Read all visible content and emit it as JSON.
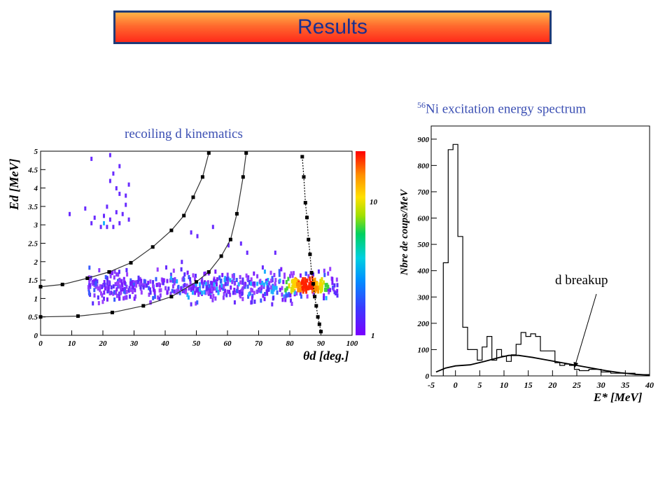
{
  "banner": {
    "title": "Results"
  },
  "chart_data": [
    {
      "type": "heatmap",
      "title": "recoiling d kinematics",
      "xlabel": "θd [deg.]",
      "ylabel": "Ed [MeV]",
      "xlim": [
        0,
        100
      ],
      "ylim": [
        0,
        5
      ],
      "x_ticks": [
        "0",
        "10",
        "20",
        "30",
        "40",
        "50",
        "60",
        "70",
        "80",
        "90",
        "100"
      ],
      "y_ticks": [
        "0",
        "0.5",
        "1",
        "1.5",
        "2",
        "2.5",
        "3",
        "3.5",
        "4",
        "4.5",
        "5"
      ],
      "colorbar": {
        "labels": [
          "1",
          "10"
        ]
      },
      "kinematic_curves": [
        {
          "style": "solid",
          "points": [
            [
              0,
              1.32
            ],
            [
              7,
              1.38
            ],
            [
              15,
              1.55
            ],
            [
              22,
              1.72
            ],
            [
              29,
              1.97
            ],
            [
              36,
              2.4
            ],
            [
              42,
              2.85
            ],
            [
              46,
              3.25
            ],
            [
              49,
              3.75
            ],
            [
              52,
              4.3
            ],
            [
              54,
              4.95
            ]
          ]
        },
        {
          "style": "solid",
          "points": [
            [
              0,
              0.5
            ],
            [
              12,
              0.52
            ],
            [
              23,
              0.62
            ],
            [
              33,
              0.8
            ],
            [
              42,
              1.05
            ],
            [
              50,
              1.45
            ],
            [
              54,
              1.72
            ],
            [
              58,
              2.15
            ],
            [
              61,
              2.6
            ],
            [
              63,
              3.3
            ],
            [
              65,
              4.3
            ],
            [
              66,
              4.95
            ]
          ]
        },
        {
          "style": "dotted",
          "points": [
            [
              84,
              4.85
            ],
            [
              84.5,
              4.3
            ],
            [
              85,
              3.6
            ],
            [
              85.5,
              3.2
            ],
            [
              86,
              2.6
            ],
            [
              86.5,
              2.2
            ],
            [
              87,
              1.7
            ],
            [
              87.5,
              1.4
            ],
            [
              88,
              1.05
            ],
            [
              88.5,
              0.8
            ],
            [
              89,
              0.5
            ],
            [
              89.5,
              0.3
            ],
            [
              90,
              0.1
            ]
          ]
        }
      ],
      "hotspot": {
        "x": 85,
        "y": 1.42
      },
      "band": {
        "x": [
          15,
          95
        ],
        "y": [
          1.05,
          1.75
        ]
      }
    },
    {
      "type": "line",
      "title": "56Ni excitation energy spectrum",
      "title_super": "56",
      "title_rest": "Ni excitation energy spectrum",
      "xlabel": "E* [MeV]",
      "ylabel": "Nbre de coups/MeV",
      "xlim": [
        -5,
        40
      ],
      "ylim": [
        0,
        950
      ],
      "x_ticks": [
        "-5",
        "0",
        "5",
        "10",
        "15",
        "20",
        "25",
        "30",
        "35",
        "40"
      ],
      "y_ticks": [
        "0",
        "100",
        "200",
        "300",
        "400",
        "500",
        "600",
        "700",
        "800",
        "900"
      ],
      "histogram": {
        "edges": [
          -2.5,
          -1.5,
          -0.5,
          0.5,
          1.5,
          2.5,
          3.5,
          4.5,
          5.5,
          6.5,
          7.5,
          8.5,
          9.5,
          10.5,
          11.5,
          12.5,
          13.5,
          14.5,
          15.5,
          16.5,
          17.5,
          18.5,
          19.5,
          20.5,
          21.5,
          22.5,
          23.5,
          24.5,
          25.5,
          27.5,
          30,
          32,
          35,
          37,
          40
        ],
        "counts": [
          430,
          860,
          880,
          530,
          185,
          100,
          100,
          60,
          110,
          150,
          60,
          100,
          75,
          55,
          80,
          120,
          165,
          150,
          160,
          150,
          95,
          95,
          95,
          50,
          40,
          45,
          40,
          25,
          20,
          25,
          15,
          10,
          10,
          5
        ]
      },
      "background": {
        "x": [
          -4,
          -2,
          0,
          3,
          6,
          9,
          11,
          13,
          16,
          19,
          22,
          25,
          28,
          31,
          34,
          37,
          40
        ],
        "y": [
          15,
          30,
          38,
          42,
          55,
          70,
          78,
          78,
          70,
          60,
          50,
          40,
          30,
          20,
          12,
          6,
          3
        ]
      },
      "annotation": {
        "text": "d breakup",
        "arrow_to": [
          24.5,
          30
        ]
      }
    }
  ]
}
